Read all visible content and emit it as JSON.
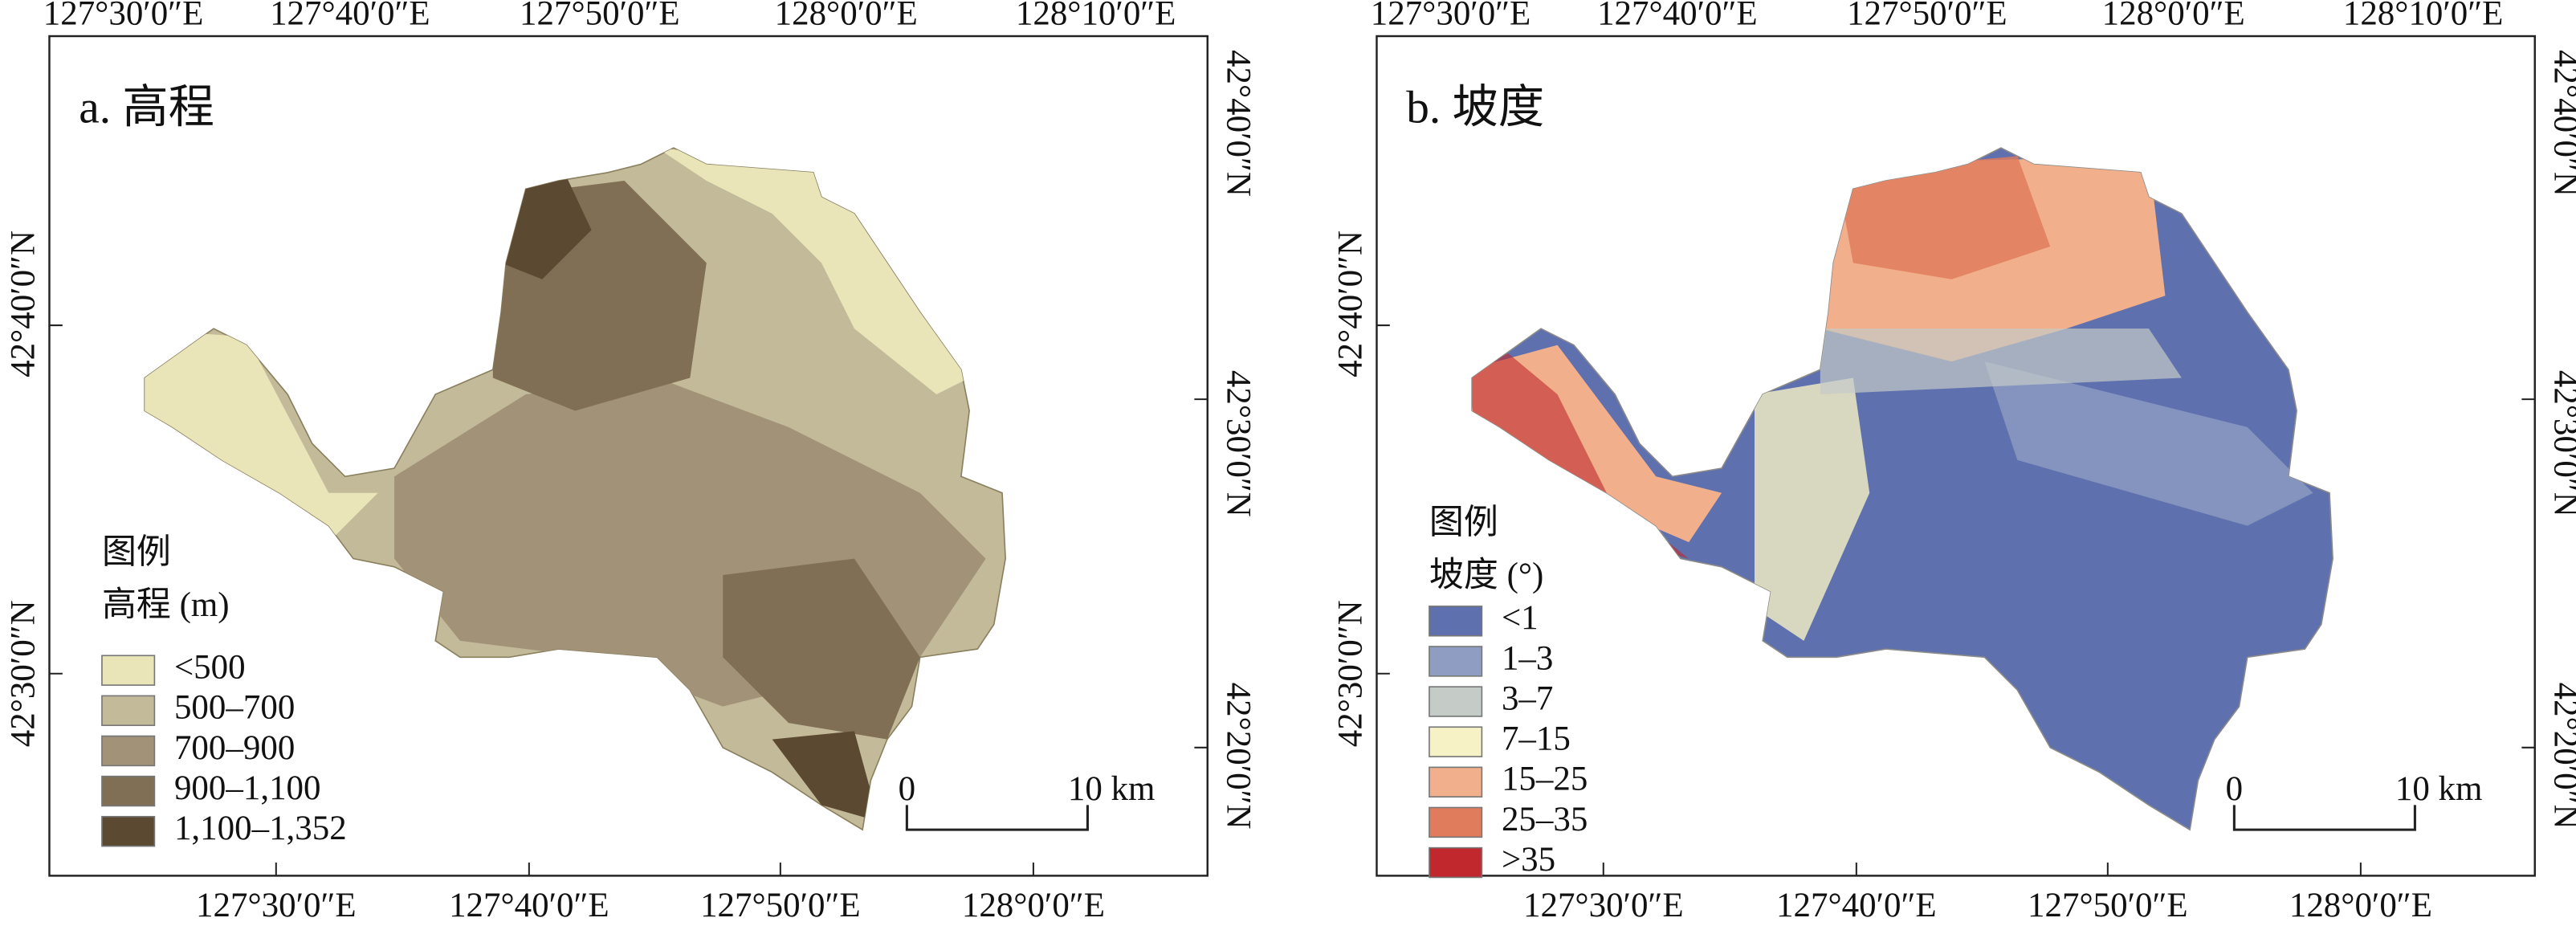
{
  "panels": [
    {
      "title": "a. 高程",
      "top_labels": [
        "127°30′0″E",
        "127°40′0″E",
        "127°50′0″E",
        "128°0′0″E",
        "128°10′0″E"
      ],
      "bottom_labels": [
        "127°30′0″E",
        "127°40′0″E",
        "127°50′0″E",
        "128°0′0″E"
      ],
      "left_labels": [
        "42°40′0″N",
        "42°30′0″N"
      ],
      "right_labels": [
        "42°40′0″N",
        "42°30′0″N",
        "42°20′0″N"
      ],
      "legend_heading": "图例",
      "legend_title": "高程 (m)",
      "legend": [
        {
          "label": "<500",
          "color": "#e9e5b9"
        },
        {
          "label": "500–700",
          "color": "#c3ba99"
        },
        {
          "label": "700–900",
          "color": "#a19278"
        },
        {
          "label": "900–1,100",
          "color": "#806e55"
        },
        {
          "label": "1,100–1,352",
          "color": "#5b4a31"
        }
      ],
      "scale_labels": [
        "0",
        "10 km"
      ]
    },
    {
      "title": "b. 坡度",
      "top_labels": [
        "127°30′0″E",
        "127°40′0″E",
        "127°50′0″E",
        "128°0′0″E",
        "128°10′0″E"
      ],
      "bottom_labels": [
        "127°30′0″E",
        "127°40′0″E",
        "127°50′0″E",
        "128°0′0″E"
      ],
      "left_labels": [
        "42°40′0″N",
        "42°30′0″N"
      ],
      "right_labels": [
        "42°40′0″N",
        "42°30′0″N",
        "42°20′0″N"
      ],
      "legend_heading": "图例",
      "legend_title": "坡度 (°)",
      "legend": [
        {
          "label": "<1",
          "color": "#5f70ae"
        },
        {
          "label": "1–3",
          "color": "#8f9dc2"
        },
        {
          "label": "3–7",
          "color": "#c5cbc7"
        },
        {
          "label": "7–15",
          "color": "#f6f2c5"
        },
        {
          "label": "15–25",
          "color": "#f1b08b"
        },
        {
          "label": "25–35",
          "color": "#e07b5b"
        },
        {
          "label": ">35",
          "color": "#c0282e"
        }
      ],
      "scale_labels": [
        "0",
        "10 km"
      ]
    }
  ]
}
